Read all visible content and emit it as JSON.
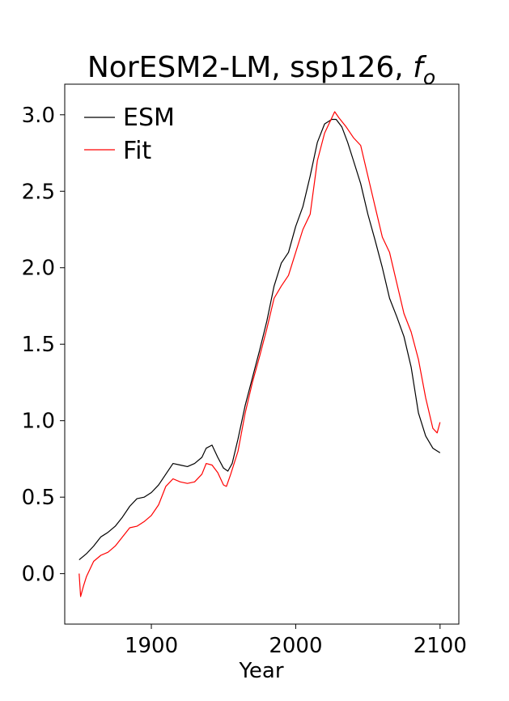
{
  "chart_data": {
    "type": "line",
    "title_main": "NorESM2-LM, ssp126, ",
    "title_symbol": "f",
    "title_subscript": "o",
    "xlabel": "Year",
    "ylabel": "",
    "xlim": [
      1840,
      2113
    ],
    "ylim": [
      -0.33,
      3.2
    ],
    "xticks": [
      1900,
      2000,
      2100
    ],
    "xtick_labels": [
      "1900",
      "2000",
      "2100"
    ],
    "yticks": [
      0.0,
      0.5,
      1.0,
      1.5,
      2.0,
      2.5,
      3.0
    ],
    "ytick_labels": [
      "0.0",
      "0.5",
      "1.0",
      "1.5",
      "2.0",
      "2.5",
      "3.0"
    ],
    "grid": false,
    "legend_position": "upper-left",
    "series": [
      {
        "name": "ESM",
        "color": "#000000",
        "x": [
          1850,
          1855,
          1860,
          1865,
          1870,
          1875,
          1880,
          1885,
          1890,
          1895,
          1900,
          1905,
          1910,
          1915,
          1920,
          1925,
          1930,
          1935,
          1938,
          1942,
          1946,
          1950,
          1953,
          1956,
          1960,
          1965,
          1970,
          1975,
          1980,
          1985,
          1990,
          1995,
          2000,
          2005,
          2010,
          2015,
          2020,
          2025,
          2028,
          2032,
          2036,
          2040,
          2045,
          2050,
          2055,
          2060,
          2065,
          2070,
          2075,
          2080,
          2085,
          2090,
          2095,
          2100
        ],
        "y": [
          0.09,
          0.13,
          0.18,
          0.24,
          0.27,
          0.31,
          0.37,
          0.44,
          0.49,
          0.5,
          0.53,
          0.58,
          0.65,
          0.72,
          0.71,
          0.7,
          0.72,
          0.76,
          0.82,
          0.84,
          0.76,
          0.69,
          0.67,
          0.72,
          0.88,
          1.1,
          1.28,
          1.46,
          1.65,
          1.88,
          2.03,
          2.1,
          2.27,
          2.4,
          2.6,
          2.82,
          2.94,
          2.97,
          2.97,
          2.92,
          2.82,
          2.7,
          2.55,
          2.35,
          2.18,
          2.0,
          1.8,
          1.68,
          1.55,
          1.35,
          1.05,
          0.9,
          0.82,
          0.79
        ]
      },
      {
        "name": "Fit",
        "color": "#ff0000",
        "x": [
          1850,
          1851,
          1853,
          1855,
          1860,
          1865,
          1870,
          1875,
          1880,
          1885,
          1890,
          1895,
          1900,
          1905,
          1910,
          1915,
          1920,
          1925,
          1930,
          1935,
          1938,
          1942,
          1946,
          1950,
          1952,
          1955,
          1960,
          1965,
          1970,
          1975,
          1980,
          1985,
          1990,
          1995,
          2000,
          2005,
          2010,
          2015,
          2020,
          2025,
          2027,
          2030,
          2035,
          2040,
          2045,
          2050,
          2055,
          2060,
          2065,
          2070,
          2075,
          2080,
          2085,
          2090,
          2095,
          2098,
          2100
        ],
        "y": [
          0.0,
          -0.15,
          -0.08,
          -0.02,
          0.08,
          0.12,
          0.14,
          0.18,
          0.24,
          0.3,
          0.31,
          0.34,
          0.38,
          0.45,
          0.57,
          0.62,
          0.6,
          0.59,
          0.6,
          0.65,
          0.72,
          0.71,
          0.66,
          0.58,
          0.57,
          0.65,
          0.8,
          1.05,
          1.25,
          1.42,
          1.6,
          1.8,
          1.88,
          1.95,
          2.1,
          2.25,
          2.35,
          2.7,
          2.88,
          2.98,
          3.02,
          2.98,
          2.92,
          2.85,
          2.8,
          2.6,
          2.4,
          2.2,
          2.1,
          1.9,
          1.7,
          1.58,
          1.4,
          1.15,
          0.95,
          0.92,
          0.99
        ]
      }
    ]
  }
}
